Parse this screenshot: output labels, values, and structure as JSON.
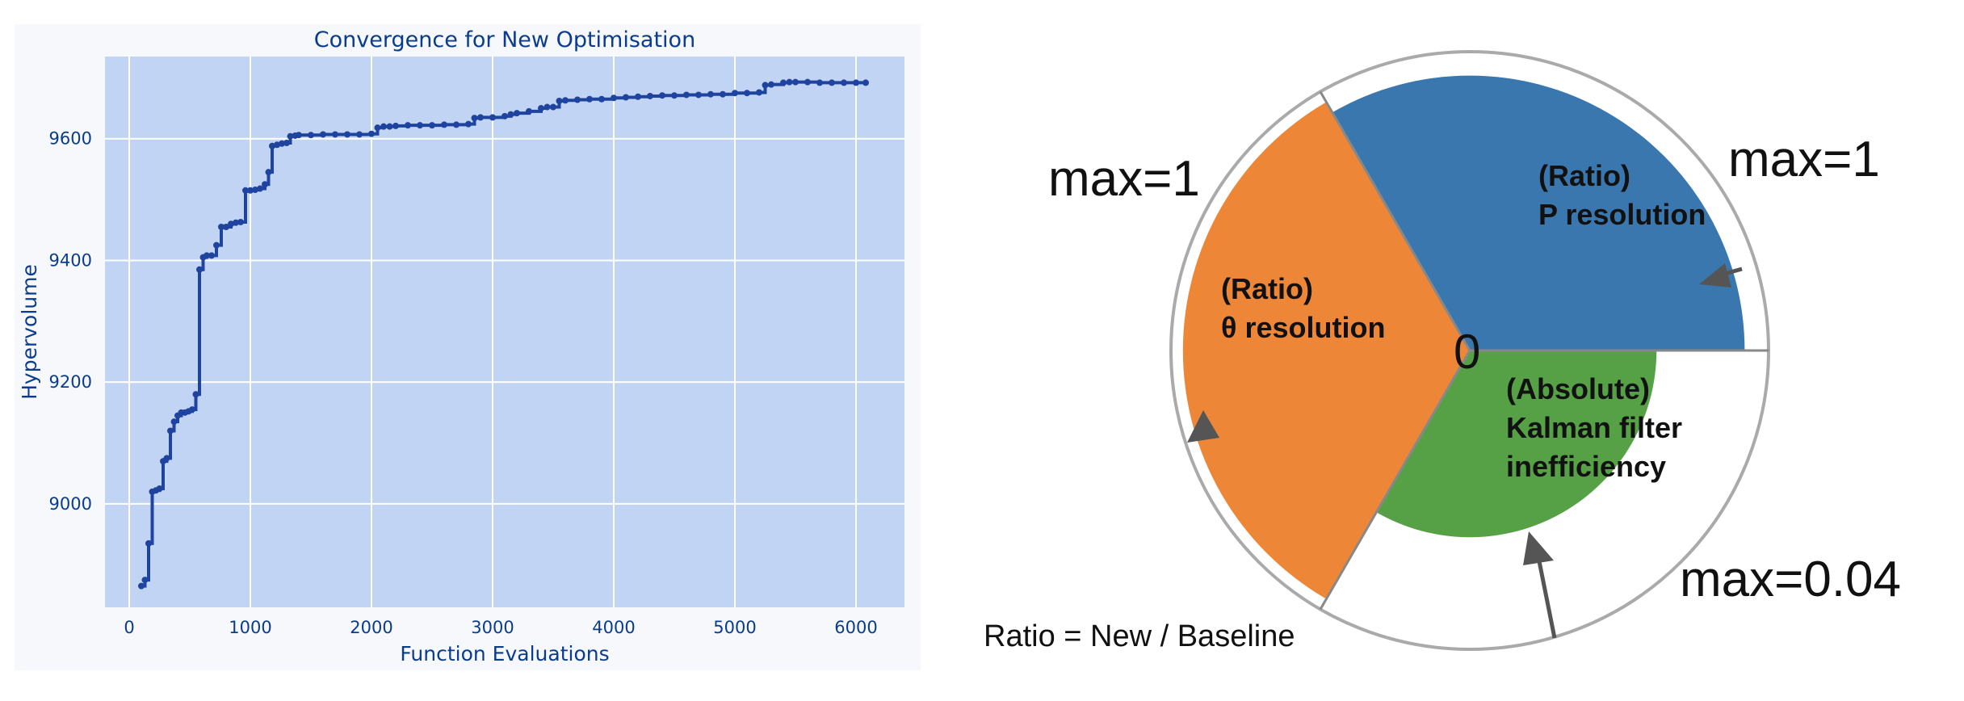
{
  "chart_data": [
    {
      "type": "line",
      "title": "Convergence for New Optimisation",
      "xlabel": "Function Evaluations",
      "ylabel": "Hypervolume",
      "xlim": [
        -200,
        6400
      ],
      "ylim": [
        8830,
        9735
      ],
      "xticks": [
        "0",
        "1000",
        "2000",
        "3000",
        "4000",
        "5000",
        "6000"
      ],
      "yticks": [
        "9000",
        "9200",
        "9400",
        "9600"
      ],
      "xtick_values": [
        0,
        1000,
        2000,
        3000,
        4000,
        5000,
        6000
      ],
      "ytick_values": [
        9000,
        9200,
        9400,
        9600
      ],
      "grid": true,
      "colors": {
        "line": "#1f44a0",
        "plot_bg": "#c1d4f3",
        "frame_bg": "#f6f8fc",
        "text": "#0b3c8c"
      },
      "series": [
        {
          "x": [
            100,
            130,
            160,
            190,
            220,
            250,
            280,
            310,
            340,
            370,
            400,
            430,
            460,
            490,
            520,
            550,
            580,
            610,
            640,
            680,
            720,
            760,
            800,
            840,
            880,
            920,
            960,
            1000,
            1040,
            1080,
            1120,
            1150,
            1180,
            1220,
            1260,
            1300,
            1330,
            1370,
            1400,
            1500,
            1600,
            1700,
            1800,
            1900,
            2000,
            2050,
            2100,
            2150,
            2200,
            2300,
            2400,
            2500,
            2600,
            2700,
            2800,
            2850,
            2900,
            3000,
            3100,
            3150,
            3200,
            3300,
            3400,
            3450,
            3500,
            3550,
            3600,
            3700,
            3800,
            3900,
            4000,
            4100,
            4200,
            4300,
            4400,
            4500,
            4600,
            4700,
            4800,
            4900,
            5000,
            5100,
            5200,
            5250,
            5300,
            5400,
            5450,
            5500,
            5600,
            5700,
            5800,
            5900,
            6000,
            6080
          ],
          "y": [
            8865,
            8875,
            8935,
            9020,
            9022,
            9025,
            9070,
            9075,
            9120,
            9135,
            9145,
            9150,
            9150,
            9152,
            9155,
            9180,
            9385,
            9405,
            9408,
            9408,
            9425,
            9455,
            9455,
            9460,
            9462,
            9463,
            9515,
            9515,
            9516,
            9518,
            9525,
            9545,
            9588,
            9590,
            9592,
            9593,
            9604,
            9605,
            9606,
            9606,
            9607,
            9607,
            9607,
            9607,
            9608,
            9618,
            9620,
            9620,
            9621,
            9622,
            9622,
            9622,
            9623,
            9623,
            9624,
            9634,
            9635,
            9635,
            9637,
            9640,
            9642,
            9645,
            9650,
            9652,
            9652,
            9662,
            9663,
            9664,
            9665,
            9665,
            9667,
            9668,
            9669,
            9670,
            9671,
            9671,
            9672,
            9672,
            9673,
            9673,
            9675,
            9675,
            9676,
            9688,
            9689,
            9692,
            9693,
            9693,
            9693,
            9692,
            9692,
            9692,
            9692,
            9692
          ]
        }
      ]
    },
    {
      "type": "pie",
      "description_text": {
        "max_left": "max=1",
        "max_right": "max=1",
        "max_bottom": "max=0.04",
        "center": "0",
        "note": "Ratio = New / Baseline"
      },
      "slices": [
        {
          "label_line1": "(Ratio)",
          "label_line2": "P resolution",
          "label_line3": "",
          "value": 0.92,
          "max": 1,
          "start_angle": 0,
          "end_angle": 120,
          "color": "#3a77af"
        },
        {
          "label_line1": "(Ratio)",
          "label_line2": "θ resolution",
          "label_line3": "",
          "value": 0.96,
          "max": 1,
          "start_angle": 120,
          "end_angle": 240,
          "color": "#ed8737"
        },
        {
          "label_line1": "(Absolute)",
          "label_line2": "Kalman filter",
          "label_line3": "inefficiency",
          "value": 0.025,
          "max": 0.04,
          "start_angle": 240,
          "end_angle": 360,
          "color": "#56a046"
        }
      ],
      "colors": {
        "outline": "#aaaaaa",
        "arrow": "#555555"
      }
    }
  ]
}
